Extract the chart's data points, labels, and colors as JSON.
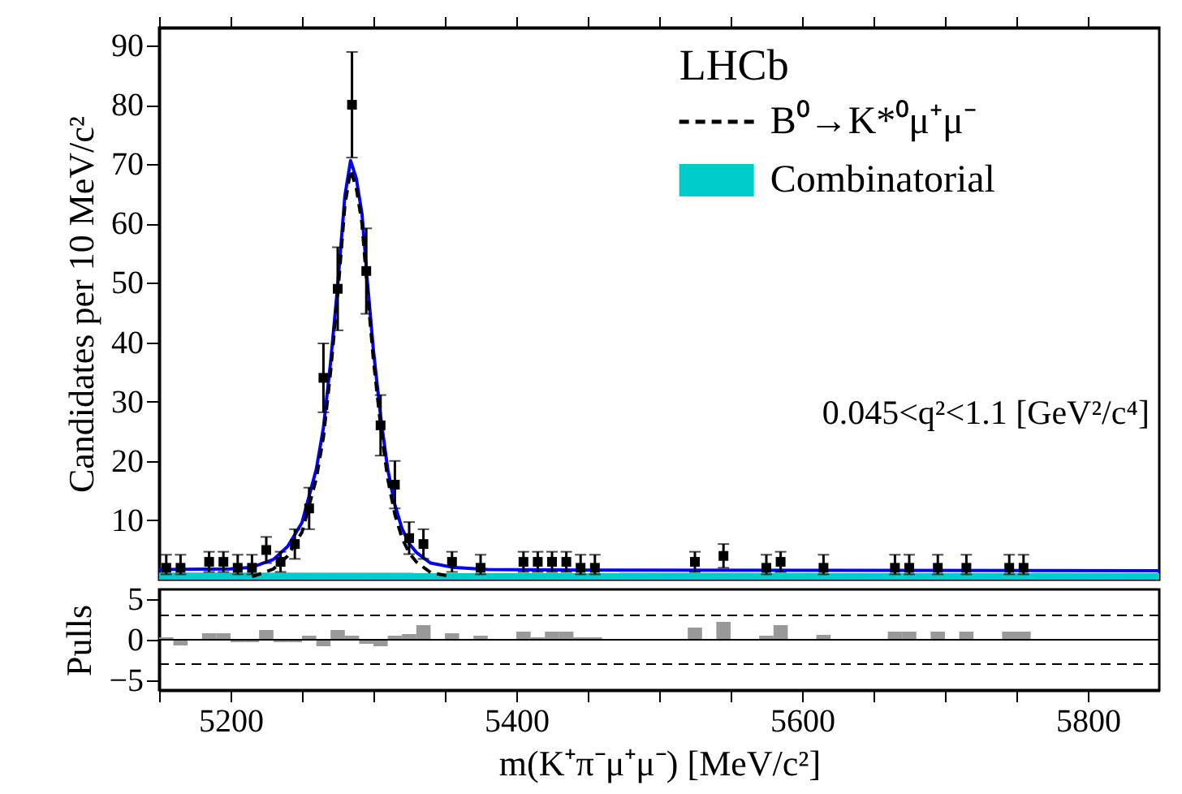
{
  "chart_data": [
    {
      "type": "scatter",
      "ylabel": "Candidates per 10 MeV/c²",
      "legend_title": "LHCb",
      "legend": "top right",
      "tick_labels": "y",
      "annotations": [
        "0.045<q²<1.1 [GeV²/c⁴]"
      ],
      "xlim": [
        5150,
        5850
      ],
      "xticks": [
        {
          "value": 5150,
          "label": null
        },
        {
          "value": 5200,
          "label": null
        },
        {
          "value": 5250,
          "label": null
        },
        {
          "value": 5300,
          "label": null
        },
        {
          "value": 5350,
          "label": null
        },
        {
          "value": 5400,
          "label": null
        },
        {
          "value": 5450,
          "label": null
        },
        {
          "value": 5500,
          "label": null
        },
        {
          "value": 5550,
          "label": null
        },
        {
          "value": 5600,
          "label": null
        },
        {
          "value": 5650,
          "label": null
        },
        {
          "value": 5700,
          "label": null
        },
        {
          "value": 5750,
          "label": null
        },
        {
          "value": 5800,
          "label": null
        }
      ],
      "ylim": [
        0,
        93
      ],
      "yticks": [
        10,
        20,
        30,
        40,
        50,
        60,
        70,
        80,
        90
      ],
      "series": [
        {
          "type": "area",
          "name": "Combinatorial",
          "color": "#00cccc",
          "x": [
            5150,
            5850
          ],
          "values": [
            1.2,
            1.1
          ]
        },
        {
          "type": "line",
          "color": "#0000ff",
          "x": [
            5150,
            5200,
            5215,
            5230,
            5240,
            5250,
            5260,
            5265,
            5270,
            5275,
            5280,
            5284,
            5288,
            5292,
            5296,
            5300,
            5305,
            5310,
            5315,
            5320,
            5325,
            5330,
            5340,
            5355,
            5380,
            5450,
            5850
          ],
          "values": [
            1.7,
            1.8,
            2.1,
            3.4,
            5.6,
            9.6,
            18.6,
            25.6,
            36.6,
            49.6,
            64.6,
            70.6,
            67.6,
            61.6,
            49.6,
            38.6,
            27.6,
            18.6,
            12.6,
            8.6,
            6.1,
            4.6,
            2.8,
            2.1,
            1.7,
            1.6,
            1.5
          ]
        },
        {
          "type": "line",
          "name": "B⁰→K*⁰μ⁺μ⁻",
          "color": "#000000",
          "line_style": "dashed",
          "x": [
            5215,
            5230,
            5240,
            5250,
            5260,
            5265,
            5270,
            5275,
            5280,
            5284,
            5288,
            5292,
            5296,
            5300,
            5305,
            5310,
            5315,
            5320,
            5325,
            5330,
            5340,
            5355
          ],
          "values": [
            0.5,
            1.8,
            4,
            8,
            17,
            24,
            35,
            48,
            63,
            69,
            66,
            60,
            48,
            37,
            26,
            17,
            11,
            7,
            4.5,
            3,
            1.2,
            0.5
          ]
        },
        {
          "color": "#000000",
          "marker": "square",
          "x": [
            5155,
            5165,
            5185,
            5195,
            5205,
            5215,
            5225,
            5235,
            5245,
            5255,
            5265,
            5275,
            5285,
            5295,
            5305,
            5315,
            5325,
            5335,
            5355,
            5375,
            5405,
            5415,
            5425,
            5435,
            5445,
            5455,
            5525,
            5545,
            5575,
            5585,
            5615,
            5665,
            5675,
            5695,
            5715,
            5745,
            5755
          ],
          "values": [
            2,
            2,
            3,
            3,
            2,
            2,
            5,
            3,
            6,
            12,
            34,
            49,
            80,
            52,
            26,
            16,
            7,
            6,
            3,
            2,
            3,
            3,
            3,
            3,
            2,
            2,
            3,
            4,
            2,
            3,
            2,
            2,
            2,
            2,
            2,
            2,
            2
          ],
          "errors": [
            [
              0.9,
              4.2
            ],
            [
              0.9,
              4.2
            ],
            1.7,
            1.7,
            [
              0.9,
              4.2
            ],
            [
              0.9,
              4.2
            ],
            2.2,
            1.7,
            2.5,
            3.5,
            5.8,
            7,
            8.9,
            7.2,
            5.1,
            4,
            2.7,
            2.5,
            1.7,
            [
              0.9,
              4.2
            ],
            1.7,
            1.7,
            1.7,
            1.7,
            [
              0.9,
              4.2
            ],
            [
              0.9,
              4.2
            ],
            1.7,
            2,
            [
              0.9,
              4.2
            ],
            1.7,
            [
              0.9,
              4.2
            ],
            [
              0.9,
              4.2
            ],
            [
              0.9,
              4.2
            ],
            [
              0.9,
              4.2
            ],
            [
              0.9,
              4.2
            ],
            [
              0.9,
              4.2
            ],
            [
              0.9,
              4.2
            ]
          ]
        }
      ]
    },
    {
      "type": "bar",
      "ylabel": "Pulls",
      "xlabel": "m(K⁺π⁻μ⁺μ⁻) [MeV/c²]",
      "xlim": [
        5150,
        5850
      ],
      "xticks": [
        {
          "value": 5150,
          "label": null
        },
        5200,
        {
          "value": 5250,
          "label": null
        },
        {
          "value": 5300,
          "label": null
        },
        {
          "value": 5350,
          "label": null
        },
        5400,
        {
          "value": 5450,
          "label": null
        },
        {
          "value": 5500,
          "label": null
        },
        {
          "value": 5550,
          "label": null
        },
        5600,
        {
          "value": 5650,
          "label": null
        },
        {
          "value": 5700,
          "label": null
        },
        {
          "value": 5750,
          "label": null
        },
        5800
      ],
      "ylim": [
        -6.2,
        6.2
      ],
      "yticks": [
        5,
        0,
        {
          "value": -5,
          "label": "−5"
        }
      ],
      "ref_lines": [
        {
          "axis": "y",
          "value": 3,
          "line_style": "dashed",
          "color": "#000000"
        },
        {
          "axis": "y",
          "value": -3,
          "line_style": "dashed",
          "color": "#000000"
        },
        {
          "axis": "y",
          "value": 0,
          "line_style": "solid",
          "color": "#000000"
        }
      ],
      "series": [
        {
          "color": "#999999",
          "x": [
            5155,
            5165,
            5185,
            5195,
            5205,
            5215,
            5225,
            5235,
            5245,
            5255,
            5265,
            5275,
            5285,
            5295,
            5305,
            5315,
            5325,
            5335,
            5355,
            5375,
            5405,
            5415,
            5425,
            5435,
            5445,
            5455,
            5525,
            5545,
            5575,
            5585,
            5615,
            5665,
            5675,
            5695,
            5715,
            5745,
            5755
          ],
          "values": [
            0.3,
            -0.7,
            0.8,
            0.8,
            -0.3,
            -0.3,
            1.2,
            -0.3,
            -0.3,
            0.5,
            -0.8,
            1.2,
            0.5,
            -0.5,
            -0.8,
            0.5,
            0.7,
            1.8,
            0.8,
            0.5,
            1.0,
            0.3,
            1.0,
            1.0,
            0.3,
            0.3,
            1.5,
            2.2,
            0.5,
            1.8,
            0.6,
            1.0,
            1.0,
            1.0,
            1.0,
            1.0,
            1.0
          ]
        }
      ]
    }
  ]
}
